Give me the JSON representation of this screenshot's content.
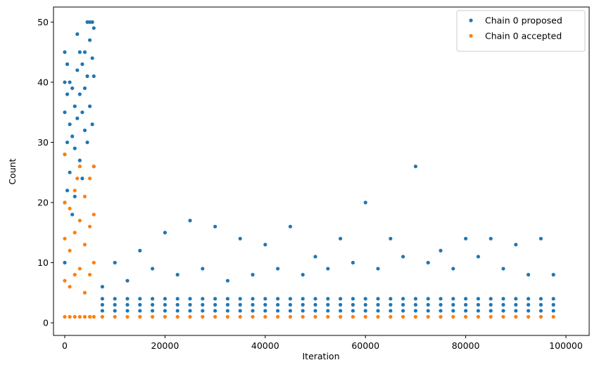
{
  "chart_data": {
    "type": "scatter",
    "x_label": "Iteration",
    "y_label": "Count",
    "xlim": [
      -2247,
      104635
    ],
    "ylim": [
      -2.1,
      52.5
    ],
    "xticks": [
      0,
      20000,
      40000,
      60000,
      80000,
      100000
    ],
    "yticks": [
      0,
      10,
      20,
      30,
      40,
      50
    ],
    "legend": "upper right",
    "grid": false,
    "series": [
      {
        "name": "Chain 0 proposed",
        "color": "#1f77b4",
        "x": [
          0,
          0,
          0,
          0,
          0,
          0,
          500,
          500,
          500,
          500,
          1000,
          1000,
          1000,
          1500,
          1500,
          1500,
          2000,
          2000,
          2000,
          2500,
          2500,
          2500,
          3000,
          3000,
          3000,
          3500,
          3500,
          3500,
          4000,
          4000,
          4000,
          4500,
          4500,
          4500,
          5000,
          5000,
          5000,
          5500,
          5500,
          5500,
          5800,
          5800,
          5800,
          7500,
          10000,
          12500,
          15000,
          17500,
          20000,
          22500,
          25000,
          27500,
          30000,
          32500,
          35000,
          37500,
          40000,
          42500,
          45000,
          47500,
          50000,
          52500,
          55000,
          57500,
          60000,
          62500,
          65000,
          67500,
          70000,
          72500,
          75000,
          77500,
          80000,
          82500,
          85000,
          87500,
          90000,
          92500,
          95000,
          97500,
          7500,
          10000,
          12500,
          15000,
          17500,
          20000,
          22500,
          25000,
          27500,
          30000,
          32500,
          35000,
          37500,
          40000,
          42500,
          45000,
          47500,
          50000,
          52500,
          55000,
          57500,
          60000,
          62500,
          65000,
          67500,
          70000,
          72500,
          75000,
          77500,
          80000,
          82500,
          85000,
          87500,
          90000,
          92500,
          95000,
          97500,
          7500,
          10000,
          12500,
          15000,
          17500,
          20000,
          22500,
          25000,
          27500,
          30000,
          32500,
          35000,
          37500,
          40000,
          42500,
          45000,
          47500,
          50000,
          52500,
          55000,
          57500,
          60000,
          62500,
          65000,
          67500,
          70000,
          72500,
          75000,
          77500,
          80000,
          82500,
          85000,
          87500,
          90000,
          92500,
          95000,
          97500,
          7500,
          10000,
          12500,
          15000,
          17500,
          20000,
          22500,
          25000,
          27500,
          30000,
          32500,
          35000,
          37500,
          40000,
          42500,
          45000,
          47500,
          50000,
          52500,
          55000,
          57500,
          60000,
          62500,
          65000,
          67500,
          70000,
          72500,
          75000,
          77500,
          80000,
          82500,
          85000,
          87500,
          90000,
          92500,
          95000,
          97500
        ],
        "values": [
          45,
          40,
          35,
          28,
          20,
          10,
          43,
          38,
          30,
          22,
          40,
          33,
          25,
          39,
          31,
          18,
          36,
          29,
          21,
          48,
          42,
          34,
          45,
          38,
          27,
          43,
          35,
          24,
          45,
          39,
          32,
          50,
          41,
          30,
          50,
          47,
          36,
          50,
          44,
          33,
          49,
          41,
          26,
          2,
          2,
          2,
          2,
          2,
          2,
          2,
          2,
          2,
          2,
          2,
          2,
          2,
          2,
          2,
          2,
          2,
          2,
          2,
          2,
          2,
          2,
          2,
          2,
          2,
          2,
          2,
          2,
          2,
          2,
          2,
          2,
          2,
          2,
          2,
          2,
          2,
          3,
          3,
          3,
          3,
          3,
          3,
          3,
          3,
          3,
          3,
          3,
          3,
          3,
          3,
          3,
          3,
          3,
          3,
          3,
          3,
          3,
          3,
          3,
          3,
          3,
          3,
          3,
          3,
          3,
          3,
          3,
          3,
          3,
          3,
          3,
          3,
          3,
          4,
          4,
          4,
          4,
          4,
          4,
          4,
          4,
          4,
          4,
          4,
          4,
          4,
          4,
          4,
          4,
          4,
          4,
          4,
          4,
          4,
          4,
          4,
          4,
          4,
          4,
          4,
          4,
          4,
          4,
          4,
          4,
          4,
          4,
          4,
          4,
          4,
          6,
          10,
          7,
          12,
          9,
          15,
          8,
          17,
          9,
          16,
          7,
          14,
          8,
          13,
          9,
          16,
          8,
          11,
          9,
          14,
          10,
          20,
          9,
          14,
          11,
          26,
          10,
          12,
          9,
          14,
          11,
          14,
          9,
          13,
          8,
          14,
          8
        ]
      },
      {
        "name": "Chain 0 accepted",
        "color": "#ff7f0e",
        "x": [
          0,
          0,
          0,
          0,
          0,
          1000,
          1000,
          1000,
          1000,
          2000,
          2000,
          2000,
          2000,
          2500,
          3000,
          3000,
          3000,
          3000,
          4000,
          4000,
          4000,
          4000,
          5000,
          5000,
          5000,
          5000,
          5800,
          5800,
          5800,
          5800,
          7500,
          10000,
          12500,
          15000,
          17500,
          20000,
          22500,
          25000,
          27500,
          30000,
          32500,
          35000,
          37500,
          40000,
          42500,
          45000,
          47500,
          50000,
          52500,
          55000,
          57500,
          60000,
          62500,
          65000,
          67500,
          70000,
          72500,
          75000,
          77500,
          80000,
          82500,
          85000,
          87500,
          90000,
          92500,
          95000,
          97500
        ],
        "values": [
          1,
          7,
          14,
          20,
          28,
          1,
          6,
          12,
          19,
          1,
          8,
          15,
          22,
          24,
          1,
          9,
          17,
          26,
          1,
          5,
          13,
          21,
          1,
          8,
          16,
          24,
          1,
          10,
          18,
          26,
          1,
          1,
          1,
          1,
          1,
          1,
          1,
          1,
          1,
          1,
          1,
          1,
          1,
          1,
          1,
          1,
          1,
          1,
          1,
          1,
          1,
          1,
          1,
          1,
          1,
          1,
          1,
          1,
          1,
          1,
          1,
          1,
          1,
          1,
          1,
          1,
          1
        ]
      }
    ]
  }
}
